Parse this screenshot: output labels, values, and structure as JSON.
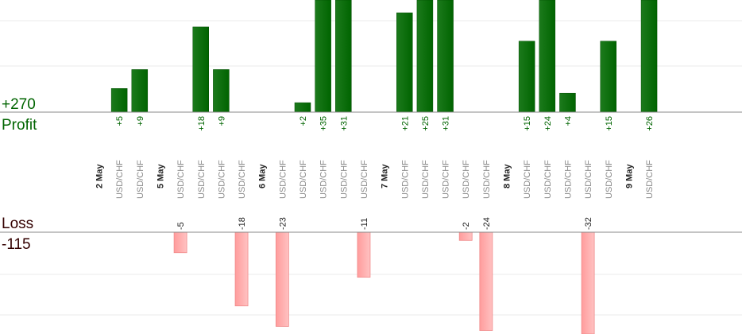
{
  "chart_data": {
    "type": "bar",
    "profit_total": "+270",
    "profit_label": "Profit",
    "loss_total": "-115",
    "loss_label": "Loss",
    "colors": {
      "profit": "#006400",
      "profit_text": "#006400",
      "loss": "#ffaaaa",
      "loss_text": "#222222",
      "loss_label_text": "#330000"
    },
    "columns": [
      {
        "kind": "date",
        "label": "2 May"
      },
      {
        "kind": "pair",
        "label": "USD/CHF",
        "profit": 5,
        "profit_label": "+5",
        "loss": null,
        "loss_label": ""
      },
      {
        "kind": "pair",
        "label": "USD/CHF",
        "profit": 9,
        "profit_label": "+9",
        "loss": null,
        "loss_label": ""
      },
      {
        "kind": "date",
        "label": "5 May"
      },
      {
        "kind": "pair",
        "label": "USD/CHF",
        "profit": null,
        "profit_label": "",
        "loss": 5,
        "loss_label": "-5"
      },
      {
        "kind": "pair",
        "label": "USD/CHF",
        "profit": 18,
        "profit_label": "+18",
        "loss": null,
        "loss_label": ""
      },
      {
        "kind": "pair",
        "label": "USD/CHF",
        "profit": 9,
        "profit_label": "+9",
        "loss": null,
        "loss_label": ""
      },
      {
        "kind": "pair",
        "label": "USD/CHF",
        "profit": null,
        "profit_label": "",
        "loss": 18,
        "loss_label": "-18"
      },
      {
        "kind": "date",
        "label": "6 May"
      },
      {
        "kind": "pair",
        "label": "USD/CHF",
        "profit": null,
        "profit_label": "",
        "loss": 23,
        "loss_label": "-23"
      },
      {
        "kind": "pair",
        "label": "USD/CHF",
        "profit": 2,
        "profit_label": "+2",
        "loss": null,
        "loss_label": ""
      },
      {
        "kind": "pair",
        "label": "USD/CHF",
        "profit": 35,
        "profit_label": "+35",
        "loss": null,
        "loss_label": ""
      },
      {
        "kind": "pair",
        "label": "USD/CHF",
        "profit": 31,
        "profit_label": "+31",
        "loss": null,
        "loss_label": ""
      },
      {
        "kind": "pair",
        "label": "USD/CHF",
        "profit": null,
        "profit_label": "",
        "loss": 11,
        "loss_label": "-11"
      },
      {
        "kind": "date",
        "label": "7 May"
      },
      {
        "kind": "pair",
        "label": "USD/CHF",
        "profit": 21,
        "profit_label": "+21",
        "loss": null,
        "loss_label": ""
      },
      {
        "kind": "pair",
        "label": "USD/CHF",
        "profit": 25,
        "profit_label": "+25",
        "loss": null,
        "loss_label": ""
      },
      {
        "kind": "pair",
        "label": "USD/CHF",
        "profit": 31,
        "profit_label": "+31",
        "loss": null,
        "loss_label": ""
      },
      {
        "kind": "pair",
        "label": "USD/CHF",
        "profit": null,
        "profit_label": "",
        "loss": 2,
        "loss_label": "-2"
      },
      {
        "kind": "pair",
        "label": "USD/CHF",
        "profit": null,
        "profit_label": "",
        "loss": 24,
        "loss_label": "-24"
      },
      {
        "kind": "date",
        "label": "8 May"
      },
      {
        "kind": "pair",
        "label": "USD/CHF",
        "profit": 15,
        "profit_label": "+15",
        "loss": null,
        "loss_label": ""
      },
      {
        "kind": "pair",
        "label": "USD/CHF",
        "profit": 24,
        "profit_label": "+24",
        "loss": null,
        "loss_label": ""
      },
      {
        "kind": "pair",
        "label": "USD/CHF",
        "profit": 4,
        "profit_label": "+4",
        "loss": null,
        "loss_label": ""
      },
      {
        "kind": "pair",
        "label": "USD/CHF",
        "profit": null,
        "profit_label": "",
        "loss": 32,
        "loss_label": "-32"
      },
      {
        "kind": "pair",
        "label": "USD/CHF",
        "profit": 15,
        "profit_label": "+15",
        "loss": null,
        "loss_label": ""
      },
      {
        "kind": "date",
        "label": "9 May"
      },
      {
        "kind": "pair",
        "label": "USD/CHF",
        "profit": 26,
        "profit_label": "+26",
        "loss": null,
        "loss_label": ""
      }
    ]
  }
}
